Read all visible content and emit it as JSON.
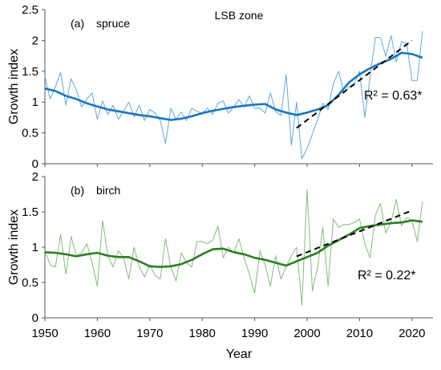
{
  "chart_data": [
    {
      "type": "line",
      "panel_label": "(a)",
      "species": "spruce",
      "zone": "LSB zone",
      "ylabel": "Growth index",
      "xlabel": "",
      "xlim": [
        1950,
        2024
      ],
      "ylim": [
        0,
        2.5
      ],
      "yticks": [
        "0",
        "0.5",
        "1",
        "1.5",
        "2",
        "2.5"
      ],
      "r2_label": "R² = 0.63*",
      "trend": {
        "x": [
          1998,
          2020
        ],
        "y": [
          0.58,
          2.0
        ]
      },
      "colors": {
        "raw": "#5aa9dc",
        "smooth": "#1a74c2",
        "trend": "#000000"
      },
      "series": [
        {
          "role": "raw",
          "x": [
            1950,
            1951,
            1952,
            1953,
            1954,
            1955,
            1956,
            1957,
            1958,
            1959,
            1960,
            1961,
            1962,
            1963,
            1964,
            1965,
            1966,
            1967,
            1968,
            1969,
            1970,
            1971,
            1972,
            1973,
            1974,
            1975,
            1976,
            1977,
            1978,
            1979,
            1980,
            1981,
            1982,
            1983,
            1984,
            1985,
            1986,
            1987,
            1988,
            1989,
            1990,
            1991,
            1992,
            1993,
            1994,
            1995,
            1996,
            1997,
            1998,
            1999,
            2000,
            2001,
            2002,
            2003,
            2004,
            2005,
            2006,
            2007,
            2008,
            2009,
            2010,
            2011,
            2012,
            2013,
            2014,
            2015,
            2016,
            2017,
            2018,
            2019,
            2020,
            2021,
            2022
          ],
          "y": [
            1.42,
            1.05,
            1.25,
            1.48,
            0.95,
            1.38,
            1.2,
            0.92,
            1.05,
            1.15,
            0.72,
            1.02,
            0.8,
            0.95,
            0.72,
            0.85,
            1.0,
            0.76,
            0.95,
            0.7,
            0.88,
            0.82,
            0.7,
            0.33,
            0.9,
            0.72,
            0.84,
            0.7,
            0.9,
            0.85,
            0.82,
            0.9,
            0.8,
            0.98,
            1.02,
            0.82,
            0.92,
            1.04,
            0.92,
            1.1,
            0.9,
            0.9,
            0.82,
            1.15,
            0.85,
            0.78,
            1.45,
            0.3,
            1.0,
            0.08,
            0.25,
            0.48,
            0.72,
            0.98,
            0.88,
            1.3,
            1.5,
            1.15,
            1.25,
            1.3,
            1.5,
            0.75,
            1.4,
            2.05,
            2.05,
            1.75,
            2.08,
            1.65,
            1.98,
            1.95,
            1.35,
            1.35,
            2.15
          ]
        },
        {
          "role": "smooth",
          "x": [
            1950,
            1952,
            1954,
            1956,
            1958,
            1960,
            1962,
            1964,
            1966,
            1968,
            1970,
            1972,
            1974,
            1976,
            1978,
            1980,
            1982,
            1984,
            1986,
            1988,
            1990,
            1992,
            1994,
            1996,
            1998,
            2000,
            2002,
            2004,
            2006,
            2008,
            2010,
            2012,
            2014,
            2016,
            2018,
            2020,
            2022
          ],
          "y": [
            1.22,
            1.18,
            1.1,
            1.05,
            0.98,
            0.93,
            0.88,
            0.85,
            0.82,
            0.79,
            0.77,
            0.74,
            0.71,
            0.73,
            0.77,
            0.82,
            0.86,
            0.89,
            0.92,
            0.94,
            0.96,
            0.97,
            0.88,
            0.83,
            0.79,
            0.83,
            0.88,
            0.95,
            1.12,
            1.32,
            1.45,
            1.55,
            1.63,
            1.7,
            1.8,
            1.78,
            1.72
          ]
        }
      ]
    },
    {
      "type": "line",
      "panel_label": "(b)",
      "species": "birch",
      "ylabel": "Growth index",
      "xlabel": "Year",
      "xlim": [
        1950,
        2024
      ],
      "ylim": [
        0,
        2
      ],
      "yticks": [
        "0",
        "0.5",
        "1",
        "1.5",
        "2"
      ],
      "xticks": [
        "1950",
        "1960",
        "1970",
        "1980",
        "1990",
        "2000",
        "2010",
        "2020"
      ],
      "r2_label": "R² = 0.22*",
      "trend": {
        "x": [
          1998,
          2020
        ],
        "y": [
          0.87,
          1.52
        ]
      },
      "colors": {
        "raw": "#7fbe74",
        "smooth": "#2e7d25",
        "trend": "#000000"
      },
      "series": [
        {
          "role": "raw",
          "x": [
            1950,
            1951,
            1952,
            1953,
            1954,
            1955,
            1956,
            1957,
            1958,
            1959,
            1960,
            1961,
            1962,
            1963,
            1964,
            1965,
            1966,
            1967,
            1968,
            1969,
            1970,
            1971,
            1972,
            1973,
            1974,
            1975,
            1976,
            1977,
            1978,
            1979,
            1980,
            1981,
            1982,
            1983,
            1984,
            1985,
            1986,
            1987,
            1988,
            1989,
            1990,
            1991,
            1992,
            1993,
            1994,
            1995,
            1996,
            1997,
            1998,
            1999,
            2000,
            2001,
            2002,
            2003,
            2004,
            2005,
            2006,
            2007,
            2008,
            2009,
            2010,
            2011,
            2012,
            2013,
            2014,
            2015,
            2016,
            2017,
            2018,
            2019,
            2020,
            2021,
            2022
          ],
          "y": [
            0.95,
            0.75,
            0.72,
            1.18,
            0.62,
            1.15,
            0.88,
            0.92,
            1.05,
            0.78,
            0.45,
            1.38,
            0.88,
            0.72,
            0.95,
            0.85,
            0.55,
            1.0,
            0.72,
            0.58,
            0.75,
            0.6,
            0.55,
            1.12,
            0.72,
            0.52,
            0.92,
            0.78,
            0.72,
            1.08,
            1.08,
            1.05,
            1.1,
            1.3,
            0.85,
            1.0,
            0.92,
            1.12,
            0.85,
            0.62,
            0.35,
            0.95,
            0.75,
            0.45,
            0.88,
            0.55,
            0.72,
            0.88,
            1.0,
            0.18,
            1.82,
            0.38,
            0.72,
            1.28,
            0.45,
            1.4,
            1.28,
            1.32,
            1.32,
            1.35,
            1.4,
            1.05,
            0.85,
            1.45,
            1.62,
            1.2,
            1.35,
            1.68,
            1.3,
            1.42,
            1.38,
            1.08,
            1.65
          ]
        },
        {
          "role": "smooth",
          "x": [
            1950,
            1952,
            1954,
            1956,
            1958,
            1960,
            1962,
            1964,
            1966,
            1968,
            1970,
            1972,
            1974,
            1976,
            1978,
            1980,
            1982,
            1984,
            1986,
            1988,
            1990,
            1992,
            1994,
            1996,
            1998,
            2000,
            2002,
            2004,
            2006,
            2008,
            2010,
            2012,
            2014,
            2016,
            2018,
            2020,
            2022
          ],
          "y": [
            0.93,
            0.92,
            0.9,
            0.87,
            0.9,
            0.92,
            0.88,
            0.86,
            0.86,
            0.8,
            0.73,
            0.72,
            0.73,
            0.76,
            0.82,
            0.9,
            0.97,
            0.98,
            0.93,
            0.9,
            0.85,
            0.82,
            0.78,
            0.74,
            0.8,
            0.86,
            0.92,
            1.02,
            1.1,
            1.18,
            1.27,
            1.3,
            1.32,
            1.34,
            1.35,
            1.38,
            1.36
          ]
        }
      ]
    }
  ]
}
